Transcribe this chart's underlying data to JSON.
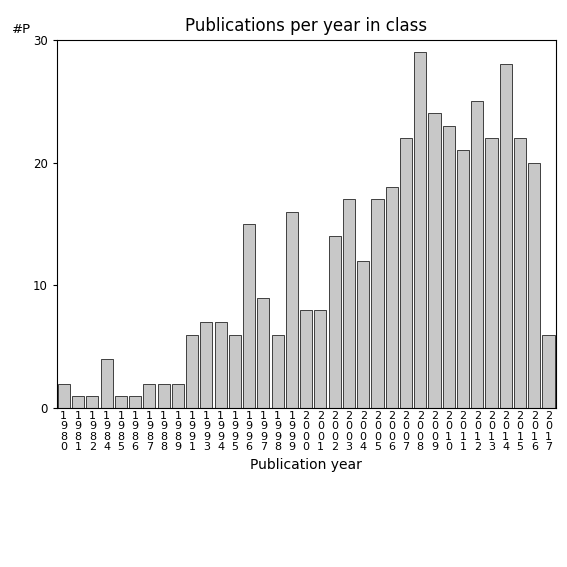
{
  "years": [
    "1980",
    "1981",
    "1982",
    "1984",
    "1985",
    "1986",
    "1987",
    "1988",
    "1989",
    "1991",
    "1993",
    "1994",
    "1995",
    "1996",
    "1997",
    "1998",
    "1999",
    "2000",
    "2001",
    "2002",
    "2003",
    "2004",
    "2005",
    "2006",
    "2007",
    "2008",
    "2009",
    "2010",
    "2011",
    "2012",
    "2013",
    "2014",
    "2015",
    "2016",
    "2017"
  ],
  "values": [
    2,
    1,
    1,
    4,
    1,
    1,
    2,
    2,
    2,
    6,
    7,
    7,
    6,
    15,
    9,
    6,
    16,
    8,
    8,
    14,
    17,
    12,
    17,
    18,
    22,
    29,
    24,
    23,
    21,
    25,
    22,
    28,
    22,
    20,
    6
  ],
  "title": "Publications per year in class",
  "xlabel": "Publication year",
  "ylabel": "#P",
  "bar_color": "#c8c8c8",
  "bar_edgecolor": "#000000",
  "ylim": [
    0,
    30
  ],
  "yticks": [
    0,
    10,
    20,
    30
  ],
  "background_color": "#ffffff",
  "title_fontsize": 12,
  "label_fontsize": 10,
  "tick_fontsize": 8.5
}
